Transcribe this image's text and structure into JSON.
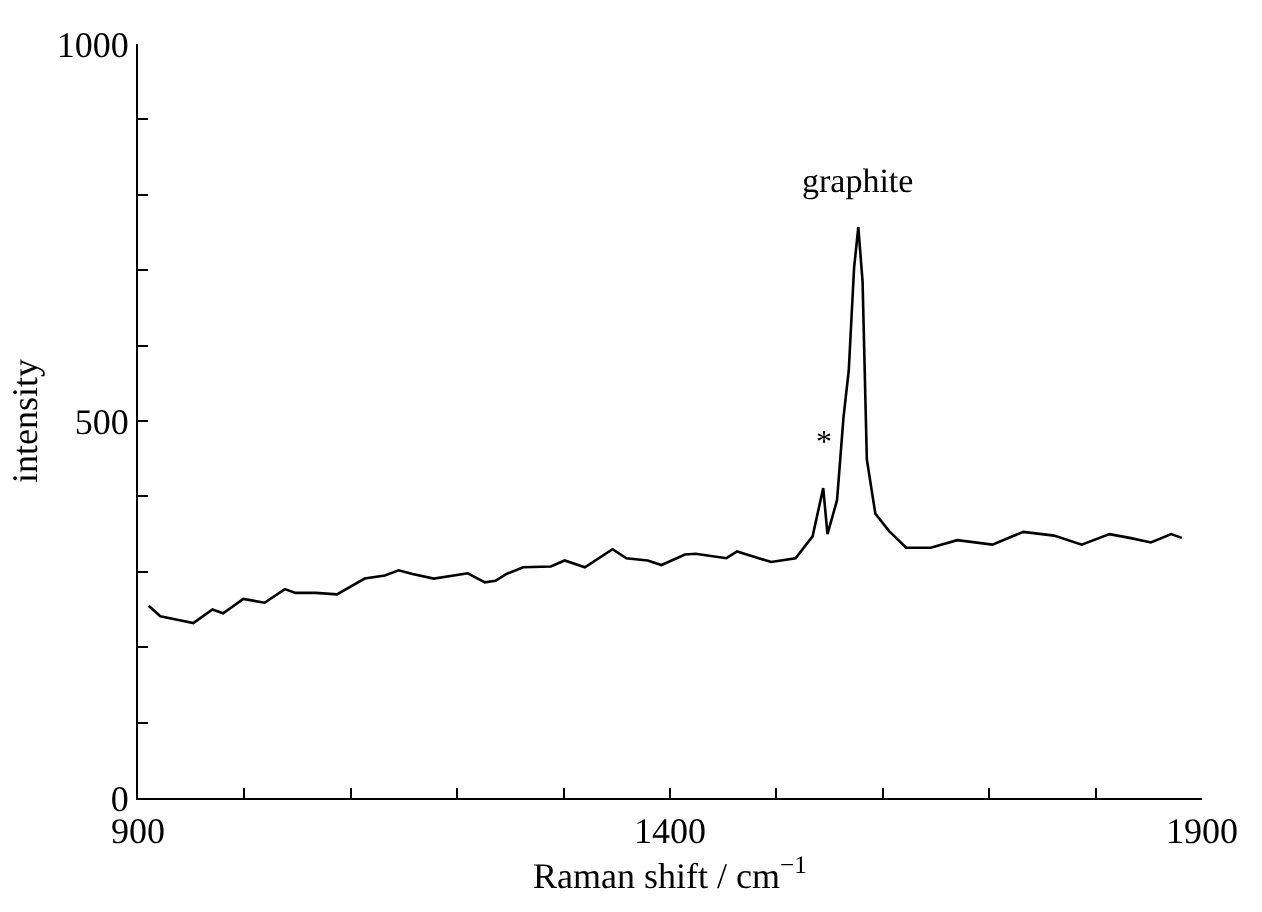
{
  "chart_data": {
    "type": "line",
    "xlabel": "Raman shift / cm$^{−1}$",
    "ylabel": "intensity",
    "x": [
      910,
      921,
      938,
      952,
      970,
      980,
      999,
      1019,
      1038,
      1048,
      1067,
      1087,
      1113,
      1132,
      1145,
      1158,
      1178,
      1210,
      1226,
      1236,
      1246,
      1262,
      1288,
      1301,
      1320,
      1346,
      1359,
      1379,
      1392,
      1414,
      1424,
      1453,
      1463,
      1495,
      1518,
      1534,
      1544,
      1548,
      1557,
      1563,
      1568,
      1573,
      1577,
      1581,
      1585,
      1593,
      1606,
      1622,
      1645,
      1670,
      1703,
      1732,
      1761,
      1787,
      1813,
      1832,
      1852,
      1871,
      1881
    ],
    "series": [
      {
        "color": "#000000",
        "values": [
          255,
          241,
          236,
          232,
          250,
          245,
          264,
          259,
          277,
          272,
          272,
          270,
          291,
          295,
          302,
          297,
          291,
          298,
          286,
          288,
          297,
          306,
          307,
          315,
          306,
          330,
          318,
          315,
          309,
          323,
          324,
          318,
          327,
          313,
          318,
          347,
          411,
          350,
          395,
          504,
          567,
          703,
          757,
          685,
          449,
          377,
          354,
          332,
          332,
          342,
          336,
          353,
          348,
          336,
          350,
          345,
          339,
          350,
          345
        ]
      }
    ],
    "annotations": [
      {
        "text": "graphite",
        "x": 1577,
        "y": 757
      },
      {
        "text": "*",
        "x": 1544,
        "y": 411
      }
    ],
    "xlim": [
      900,
      1900
    ],
    "ylim": [
      0,
      1000
    ],
    "xticks": [
      900,
      {
        "value": 1000,
        "label": null
      },
      {
        "value": 1100,
        "label": null
      },
      {
        "value": 1200,
        "label": null
      },
      {
        "value": 1300,
        "label": null
      },
      1400,
      {
        "value": 1500,
        "label": null
      },
      {
        "value": 1600,
        "label": null
      },
      {
        "value": 1700,
        "label": null
      },
      {
        "value": 1800,
        "label": null
      },
      1900
    ],
    "yticks": [
      0,
      {
        "value": 100,
        "label": null
      },
      {
        "value": 200,
        "label": null
      },
      {
        "value": 300,
        "label": null
      },
      {
        "value": 400,
        "label": null
      },
      500,
      {
        "value": 600,
        "label": null
      },
      {
        "value": 700,
        "label": null
      },
      {
        "value": 800,
        "label": null
      },
      {
        "value": 900,
        "label": null
      },
      1000
    ],
    "marker": "none",
    "line_style": "solid"
  }
}
